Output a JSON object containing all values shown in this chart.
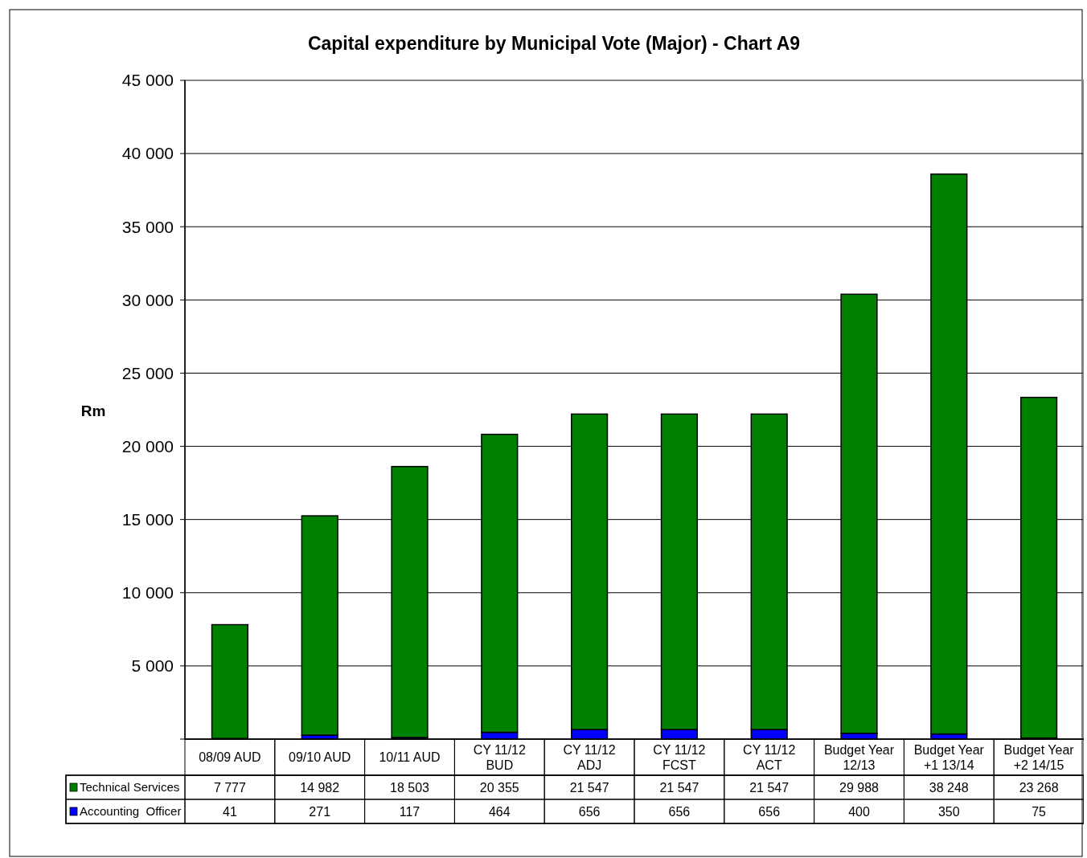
{
  "chart_data": {
    "type": "bar",
    "title": "Capital expenditure by Municipal Vote (Major) - Chart A9",
    "ylabel": "Rm",
    "categories": [
      "08/09 AUD",
      "09/10 AUD",
      "10/11 AUD",
      "CY 11/12 BUD",
      "CY 11/12 ADJ",
      "CY 11/12 FCST",
      "CY 11/12 ACT",
      "Budget Year 12/13",
      "Budget Year +1 13/14",
      "Budget Year +2 14/15"
    ],
    "stacked": true,
    "series": [
      {
        "name": "Accounting  Officer",
        "color": "#0000ff",
        "values": [
          41,
          271,
          117,
          464,
          656,
          656,
          656,
          400,
          350,
          75
        ],
        "value_labels": [
          "41",
          "271",
          "117",
          "464",
          "656",
          "656",
          "656",
          "400",
          "350",
          "75"
        ]
      },
      {
        "name": "Technical Services",
        "color": "#008000",
        "values": [
          7777,
          14982,
          18503,
          20355,
          21547,
          21547,
          21547,
          29988,
          38248,
          23268
        ],
        "value_labels": [
          "7 777",
          "14 982",
          "18 503",
          "20 355",
          "21 547",
          "21 547",
          "21 547",
          "29 988",
          "38 248",
          "23 268"
        ]
      }
    ],
    "ylim": [
      0,
      45000
    ],
    "yticks": [
      {
        "value": 0,
        "label": null
      },
      {
        "value": 5000,
        "label": "5 000"
      },
      {
        "value": 10000,
        "label": "10 000"
      },
      {
        "value": 15000,
        "label": "15 000"
      },
      {
        "value": 20000,
        "label": "20 000"
      },
      {
        "value": 25000,
        "label": "25 000"
      },
      {
        "value": 30000,
        "label": "30 000"
      },
      {
        "value": 35000,
        "label": "35 000"
      },
      {
        "value": 40000,
        "label": "40 000"
      },
      {
        "value": 45000,
        "label": "45 000"
      }
    ],
    "grid": "y",
    "legend": "bottom"
  }
}
